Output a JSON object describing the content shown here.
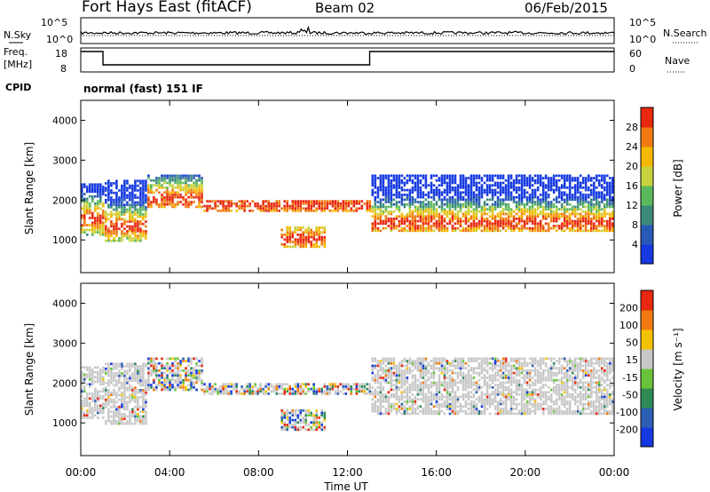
{
  "header": {
    "station": "Fort Hays East (fitACF)",
    "beam": "Beam 02",
    "date": "06/Feb/2015"
  },
  "strips": {
    "nsky_label": "N.Sky",
    "nsearch_label": "N.Search",
    "left_ticks": [
      "10^5",
      "10^0"
    ],
    "right_ticks": [
      "10^5",
      "10^0"
    ],
    "freq_label": "Freq.",
    "freq_unit": "[MHz]",
    "freq_ticks": [
      "18",
      "8"
    ],
    "nave_label": "Nave",
    "nave_ticks": [
      "60",
      "0"
    ],
    "cpid_label": "CPID",
    "cpid_text": "normal (fast) 151 IF"
  },
  "chart_data": [
    {
      "type": "heatmap",
      "panel": "power",
      "ylabel": "Slant Range [km]",
      "yticks": [
        "1000",
        "2000",
        "3000",
        "4000"
      ],
      "ylim": [
        180,
        4500
      ],
      "colorbar_label": "Power [dB]",
      "colorbar_ticks": [
        "4",
        "8",
        "12",
        "16",
        "20",
        "24",
        "28"
      ],
      "colorbar_range": [
        0,
        32
      ],
      "colors": [
        "#1538e0",
        "#2a5ab8",
        "#3c8a7a",
        "#5cb85c",
        "#c8d23c",
        "#f5b800",
        "#f07a10",
        "#e8280f"
      ],
      "bands": [
        {
          "t": [
            0.0,
            1.0
          ],
          "r": [
            1100,
            2400
          ],
          "peak": 1500
        },
        {
          "t": [
            1.0,
            3.0
          ],
          "r": [
            950,
            2500
          ],
          "peak": 1300
        },
        {
          "t": [
            3.0,
            5.5
          ],
          "r": [
            1800,
            2600
          ],
          "peak": 2000
        },
        {
          "t": [
            5.5,
            13.0
          ],
          "r": [
            1700,
            2000
          ],
          "peak": 1850
        },
        {
          "t": [
            9.0,
            11.0
          ],
          "r": [
            800,
            1300
          ],
          "peak": 1000
        },
        {
          "t": [
            13.0,
            24.0
          ],
          "r": [
            1200,
            2600
          ],
          "peak": 1400
        }
      ]
    },
    {
      "type": "heatmap",
      "panel": "velocity",
      "ylabel": "Slant Range [km]",
      "yticks": [
        "1000",
        "2000",
        "3000",
        "4000"
      ],
      "ylim": [
        180,
        4500
      ],
      "colorbar_label": "Velocity [m s⁻¹]",
      "colorbar_ticks": [
        "200",
        "100",
        "50",
        "15",
        "-15",
        "-50",
        "-100",
        "-200"
      ],
      "colors": [
        "#1538e0",
        "#2d5fb4",
        "#2e8b57",
        "#6ac43a",
        "#c8c8c8",
        "#f2c200",
        "#f07a10",
        "#e8280f"
      ],
      "ground_scatter_color": "#c8c8c8"
    }
  ],
  "xaxis": {
    "ticks": [
      "00:00",
      "04:00",
      "08:00",
      "12:00",
      "16:00",
      "20:00",
      "00:00"
    ],
    "label": "Time UT",
    "range_hours": [
      0,
      24
    ]
  }
}
